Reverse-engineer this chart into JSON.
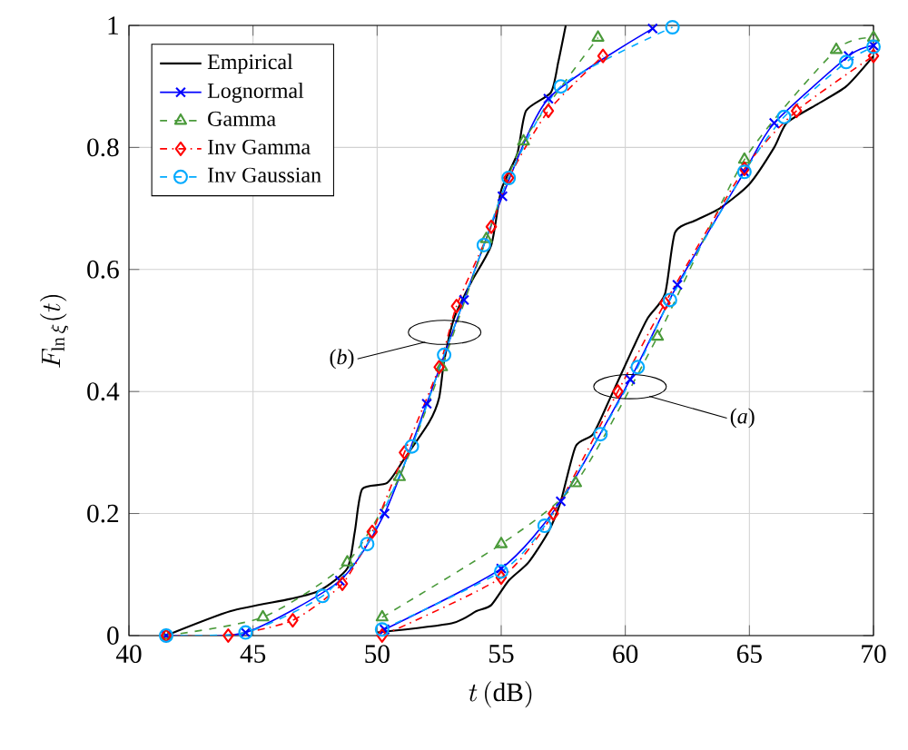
{
  "chart_data": {
    "type": "line",
    "xlabel": "t\\,(\\mathrm{dB})",
    "ylabel": "F_{\\ln\\xi}(t)",
    "xlim": [
      40,
      70
    ],
    "ylim": [
      0,
      1
    ],
    "xticks": [
      40,
      45,
      50,
      55,
      60,
      65,
      70
    ],
    "yticks": [
      0,
      0.2,
      0.4,
      0.6,
      0.8,
      1
    ],
    "grid": true,
    "legend": "top left",
    "series": [
      {
        "name": "Empirical",
        "color": "#000000",
        "marker": "none",
        "line_style": "solid",
        "x": [
          41.5,
          44.1,
          46.5,
          47.7,
          48.8,
          49.1,
          49.4,
          50.4,
          51.1,
          52.1,
          52.5,
          52.7,
          53.1,
          53.8,
          54.6,
          55.0,
          55.65,
          56.0,
          57.0,
          57.3,
          57.6
        ],
        "values": [
          0,
          0.04,
          0.06,
          0.074,
          0.11,
          0.17,
          0.24,
          0.25,
          0.29,
          0.35,
          0.39,
          0.45,
          0.52,
          0.58,
          0.64,
          0.73,
          0.79,
          0.86,
          0.89,
          0.94,
          1.0
        ]
      },
      {
        "name": "Lognormal",
        "color": "#0000ff",
        "marker": "cross",
        "line_style": "solid",
        "x": [
          41.5,
          44.7,
          48.5,
          50.3,
          52.0,
          53.5,
          55.05,
          56.9,
          61.1
        ],
        "values": [
          0,
          0.005,
          0.09,
          0.2,
          0.38,
          0.55,
          0.72,
          0.88,
          0.995
        ]
      },
      {
        "name": "Gamma",
        "color": "#4a9a3a",
        "marker": "triangle",
        "line_style": "dashed",
        "x": [
          41.5,
          45.4,
          48.8,
          50.9,
          52.6,
          54.4,
          55.9,
          58.9
        ],
        "values": [
          0,
          0.03,
          0.12,
          0.26,
          0.44,
          0.65,
          0.81,
          0.98
        ]
      },
      {
        "name": "Inv Gamma",
        "color": "#ff0000",
        "marker": "diamond",
        "line_style": "dashdot",
        "x": [
          41.5,
          44.0,
          46.6,
          48.6,
          49.8,
          51.1,
          52.5,
          53.2,
          54.6,
          55.3,
          56.9,
          59.1
        ],
        "values": [
          0,
          0,
          0.025,
          0.085,
          0.17,
          0.3,
          0.44,
          0.54,
          0.67,
          0.75,
          0.86,
          0.95
        ]
      },
      {
        "name": "Inv Gaussian",
        "color": "#00aaff",
        "marker": "circle",
        "line_style": "dashed",
        "x": [
          41.5,
          44.7,
          47.8,
          49.6,
          51.4,
          52.7,
          54.3,
          55.3,
          57.4,
          61.9
        ],
        "values": [
          0,
          0.005,
          0.065,
          0.15,
          0.31,
          0.46,
          0.64,
          0.75,
          0.9,
          0.997
        ]
      },
      {
        "color": "#000000",
        "marker": "none",
        "line_style": "solid",
        "x": [
          50.0,
          53.0,
          54.0,
          54.6,
          55.3,
          56.1,
          56.9,
          57.4,
          58.0,
          58.7,
          59.4,
          60.3,
          60.9,
          61.6,
          62.0,
          62.8,
          63.8,
          65.0,
          66.0,
          66.5,
          67.7,
          68.9,
          70.0
        ],
        "values": [
          0.005,
          0.02,
          0.04,
          0.05,
          0.09,
          0.12,
          0.17,
          0.22,
          0.31,
          0.33,
          0.39,
          0.47,
          0.52,
          0.56,
          0.66,
          0.68,
          0.7,
          0.74,
          0.8,
          0.84,
          0.87,
          0.9,
          0.95
        ]
      },
      {
        "color": "#0000ff",
        "marker": "cross",
        "line_style": "solid",
        "x": [
          50.3,
          55.0,
          57.4,
          60.2,
          62.1,
          64.8,
          66.0,
          69.0,
          70.0
        ],
        "values": [
          0.01,
          0.11,
          0.22,
          0.42,
          0.575,
          0.76,
          0.84,
          0.95,
          0.967
        ]
      },
      {
        "color": "#4a9a3a",
        "marker": "triangle",
        "line_style": "dashed",
        "x": [
          50.2,
          55.0,
          58.0,
          61.3,
          64.8,
          68.5,
          70.0
        ],
        "values": [
          0.03,
          0.15,
          0.25,
          0.49,
          0.78,
          0.96,
          0.98
        ]
      },
      {
        "color": "#ff0000",
        "marker": "diamond",
        "line_style": "dashdot",
        "x": [
          50.2,
          55.0,
          57.1,
          59.7,
          61.6,
          64.8,
          66.9,
          70.0
        ],
        "values": [
          0,
          0.095,
          0.2,
          0.4,
          0.545,
          0.765,
          0.86,
          0.95
        ]
      },
      {
        "color": "#00aaff",
        "marker": "circle",
        "line_style": "dashed",
        "x": [
          50.2,
          55.0,
          56.75,
          59.0,
          60.5,
          61.8,
          64.8,
          66.4,
          68.9,
          70.0
        ],
        "values": [
          0.01,
          0.105,
          0.18,
          0.33,
          0.44,
          0.55,
          0.76,
          0.85,
          0.94,
          0.965
        ]
      }
    ],
    "annotations": [
      "(*b*)",
      "(*a*)"
    ]
  }
}
